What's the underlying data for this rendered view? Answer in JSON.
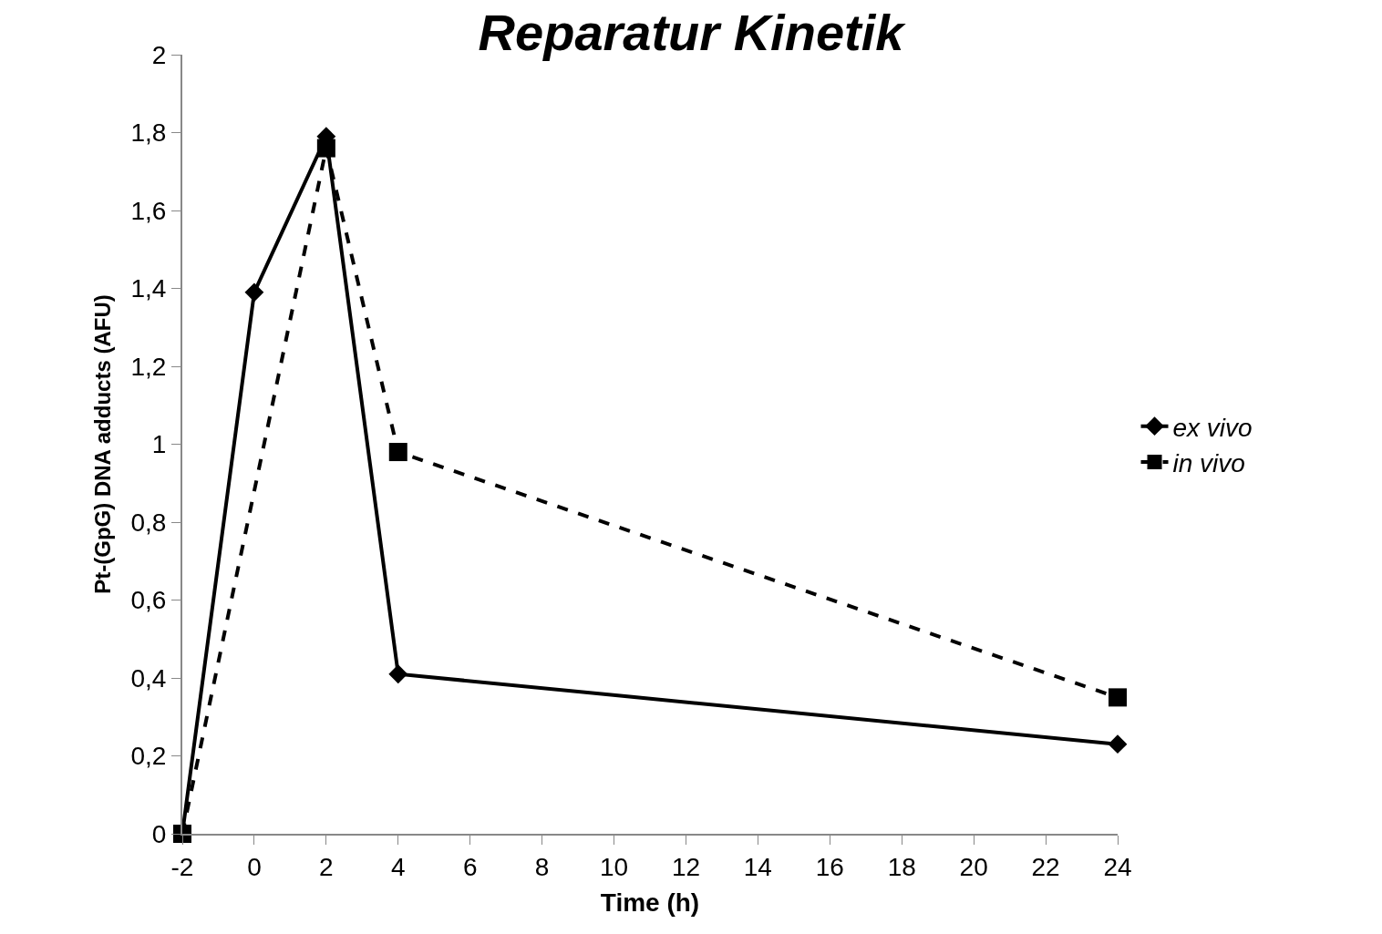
{
  "chart_data": {
    "type": "line",
    "title": "Reparatur Kinetik",
    "xlabel": "Time (h)",
    "ylabel": "Pt-(GpG) DNA adducts (AFU)",
    "series": [
      {
        "name": "ex vivo",
        "color": "#000000",
        "x": [
          -2,
          0,
          2,
          4,
          24
        ],
        "values": [
          0,
          1.39,
          1.79,
          0.41,
          0.23
        ],
        "marker": "diamond",
        "line_style": "solid"
      },
      {
        "name": "in vivo",
        "color": "#000000",
        "x": [
          -2,
          2,
          4,
          24
        ],
        "values": [
          0,
          1.76,
          0.98,
          0.35
        ],
        "marker": "square",
        "line_style": "dashed"
      }
    ],
    "xlim": [
      -2,
      24
    ],
    "xticks": [
      -2,
      0,
      2,
      4,
      6,
      8,
      10,
      12,
      14,
      16,
      18,
      20,
      22,
      24
    ],
    "ylim": [
      0,
      2
    ],
    "yticks": [
      0,
      {
        "value": 0.2,
        "label": "0,2"
      },
      {
        "value": 0.4,
        "label": "0,4"
      },
      {
        "value": 0.6,
        "label": "0,6"
      },
      {
        "value": 0.8,
        "label": "0,8"
      },
      1,
      {
        "value": 1.2,
        "label": "1,2"
      },
      {
        "value": 1.4,
        "label": "1,4"
      },
      {
        "value": 1.6,
        "label": "1,6"
      },
      {
        "value": 1.8,
        "label": "1,8"
      },
      2
    ],
    "legend": "right"
  }
}
